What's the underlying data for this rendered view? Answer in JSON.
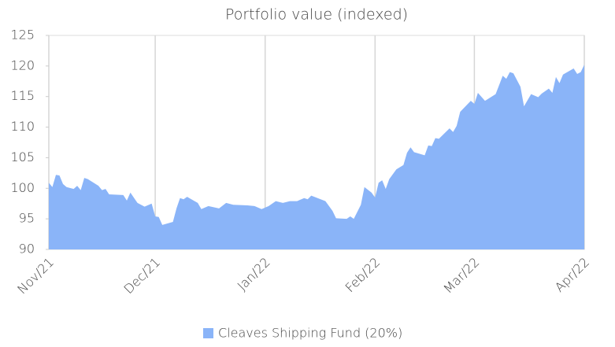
{
  "chart_data": {
    "type": "area",
    "title": "Portfolio value (indexed)",
    "x": [
      0,
      1,
      2,
      3,
      4,
      5,
      7,
      8,
      9,
      10,
      11,
      14,
      15,
      16,
      17,
      21,
      22,
      23,
      25,
      27,
      29,
      30,
      31,
      32,
      35,
      36,
      37,
      38,
      39,
      42,
      43,
      45,
      48,
      50,
      52,
      56,
      58,
      60,
      62,
      64,
      66,
      68,
      70,
      72,
      73,
      74,
      78,
      80,
      81,
      84,
      85,
      86,
      88,
      89,
      91,
      92,
      93,
      94,
      95,
      96,
      98,
      100,
      101,
      102,
      103,
      106,
      107,
      108,
      109,
      110,
      113,
      114,
      115,
      116,
      119,
      120,
      121,
      123,
      126,
      128,
      129,
      130,
      131,
      133,
      134,
      136,
      138,
      139,
      141,
      142,
      143,
      144,
      145,
      148,
      149,
      150,
      151
    ],
    "series": [
      {
        "name": "Cleaves Shipping Fund (20%)",
        "color": "#8ab4f8",
        "values": [
          100.9,
          100.2,
          102.2,
          102.1,
          100.7,
          100.2,
          99.9,
          100.4,
          99.7,
          101.7,
          101.5,
          100.4,
          99.7,
          99.9,
          99.0,
          98.9,
          98.0,
          99.3,
          97.6,
          97.0,
          97.5,
          95.4,
          95.3,
          94.0,
          94.5,
          96.7,
          98.4,
          98.2,
          98.6,
          97.6,
          96.6,
          97.1,
          96.7,
          97.6,
          97.3,
          97.2,
          97.1,
          96.6,
          97.1,
          97.9,
          97.6,
          97.9,
          97.9,
          98.4,
          98.2,
          98.8,
          97.9,
          96.3,
          95.1,
          95.0,
          95.4,
          95.0,
          97.3,
          100.2,
          99.3,
          98.5,
          100.9,
          101.3,
          99.9,
          101.5,
          103.1,
          103.8,
          105.8,
          106.7,
          105.9,
          105.4,
          107.0,
          106.9,
          108.2,
          108.1,
          109.8,
          109.2,
          110.2,
          112.5,
          114.3,
          113.8,
          115.6,
          114.3,
          115.4,
          118.4,
          117.9,
          119.0,
          118.8,
          116.6,
          113.4,
          115.4,
          114.9,
          115.5,
          116.3,
          115.6,
          118.2,
          117.2,
          118.6,
          119.6,
          118.7,
          119.0,
          120.2
        ]
      }
    ],
    "xlim": [
      0,
      151
    ],
    "xticks": [
      {
        "value": 0,
        "label": "Nov/21"
      },
      {
        "value": 30,
        "label": "Dec/21"
      },
      {
        "value": 61,
        "label": "Jan/22"
      },
      {
        "value": 92,
        "label": "Feb/22"
      },
      {
        "value": 120,
        "label": "Mar/22"
      },
      {
        "value": 151,
        "label": "Apr/22"
      }
    ],
    "ylim": [
      90,
      125
    ],
    "yticks": [
      90,
      95,
      100,
      105,
      110,
      115,
      120,
      125
    ],
    "grid": "x",
    "legend": "bottom"
  }
}
